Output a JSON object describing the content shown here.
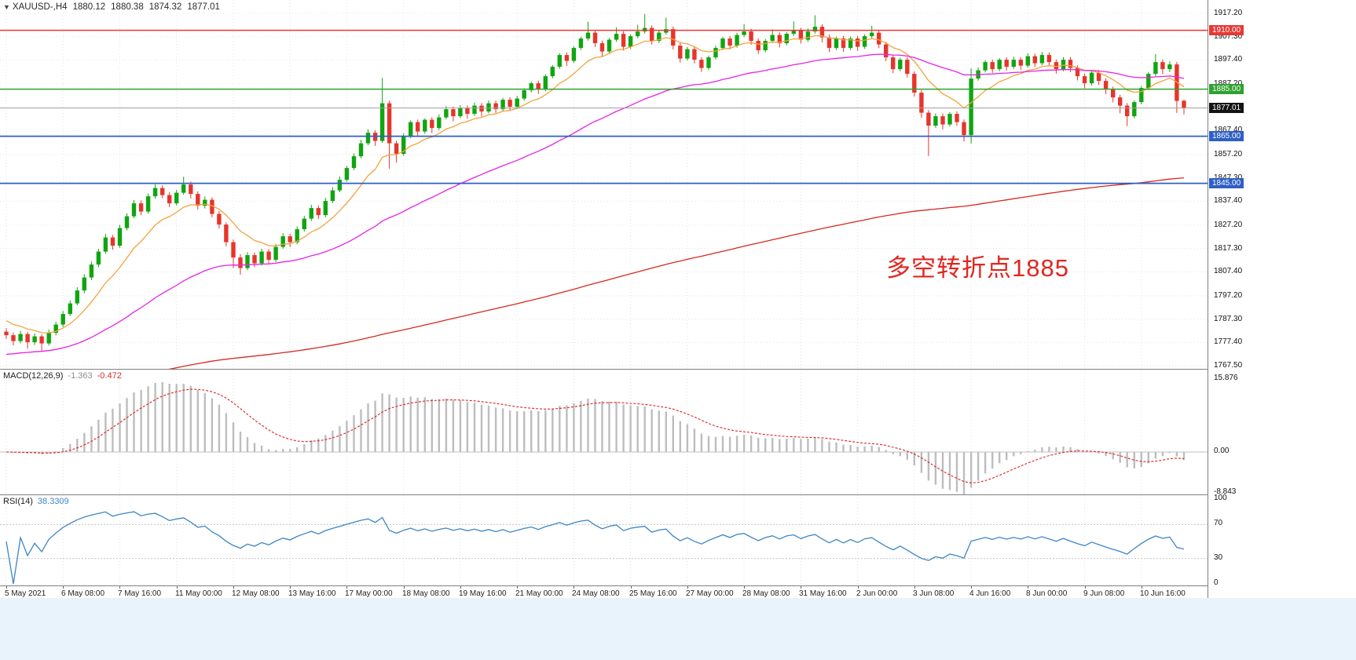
{
  "chart_header": {
    "marker": "▼",
    "symbol_period": "XAUUSD-,H4",
    "open": "1880.12",
    "high": "1880.38",
    "low": "1874.32",
    "close": "1877.01"
  },
  "annotation": {
    "text": "多空转折点1885",
    "color": "#e2251f"
  },
  "macd_panel": {
    "label": "MACD(12,26,9)",
    "main_value": "-1.363",
    "signal_value": "-0.472",
    "axis_values": [
      15.876,
      0.0,
      -8.843
    ],
    "axis_labels": [
      "15.876",
      "0.00",
      "-8.843"
    ]
  },
  "rsi_panel": {
    "label": "RSI(14)",
    "value": "38.3309",
    "axis_values": [
      100,
      70,
      30,
      0
    ],
    "axis_labels": [
      "100",
      "70",
      "30",
      "0"
    ],
    "level_lines": [
      70,
      30
    ]
  },
  "chart_data": {
    "type": "candlestick",
    "symbol": "XAUUSD-",
    "timeframe": "H4",
    "title": "XAUUSD-,H4",
    "ylim": [
      1767.5,
      1917.2
    ],
    "price_axis_ticks": [
      "1917.20",
      "1907.30",
      "1897.40",
      "1887.20",
      "1867.40",
      "1857.20",
      "1847.30",
      "1837.40",
      "1827.20",
      "1817.30",
      "1807.40",
      "1797.20",
      "1787.30",
      "1777.40",
      "1767.50"
    ],
    "x_labels": [
      "5 May 2021",
      "6 May 08:00",
      "7 May 16:00",
      "11 May 00:00",
      "12 May 08:00",
      "13 May 16:00",
      "17 May 00:00",
      "18 May 08:00",
      "19 May 16:00",
      "21 May 00:00",
      "24 May 08:00",
      "25 May 16:00",
      "27 May 00:00",
      "28 May 08:00",
      "31 May 16:00",
      "2 Jun 00:00",
      "3 Jun 08:00",
      "4 Jun 16:00",
      "8 Jun 00:00",
      "9 Jun 08:00",
      "10 Jun 16:00"
    ],
    "bars_per_label": 8,
    "horizontal_levels": [
      {
        "label": "1910.00",
        "price": 1910.0,
        "line_color": "#e53935",
        "badge_color": "#e53935",
        "width": 1.5
      },
      {
        "label": "1885.00",
        "price": 1885.0,
        "line_color": "#2fa12f",
        "badge_color": "#2fa12f",
        "width": 1.5
      },
      {
        "label": "1877.01",
        "price": 1877.01,
        "line_color": "#9e9e9e",
        "badge_color": "#141414",
        "width": 1
      },
      {
        "label": "1865.00",
        "price": 1865.0,
        "line_color": "#2f5fc4",
        "badge_color": "#2f5fc4",
        "width": 1.8
      },
      {
        "label": "1845.00",
        "price": 1845.0,
        "line_color": "#2f5fc4",
        "badge_color": "#2f5fc4",
        "width": 1.8
      }
    ],
    "moving_averages": [
      {
        "name": "fast-ma",
        "period": 10,
        "seed": 1788,
        "color": "#f2a33c"
      },
      {
        "name": "mid-ma",
        "period": 45,
        "seed": 1772,
        "color": "#e623e6"
      },
      {
        "name": "slow-ma",
        "period": 250,
        "seed": 1757,
        "color": "#d42a1e"
      }
    ],
    "indicators": [
      {
        "name": "MACD",
        "params": "12,26,9",
        "histogram_color": "#bdbdbd",
        "signal_color": "#dd2222"
      },
      {
        "name": "RSI",
        "params": "14",
        "color": "#3d85c6"
      }
    ],
    "colors": {
      "up": "#10a510",
      "down": "#e6352b",
      "background": "#ffffff",
      "grid": "#e4e4e4"
    },
    "candles": [
      [
        1782.0,
        1783.5,
        1778.9,
        1780.5
      ],
      [
        1780.5,
        1781.6,
        1776.2,
        1778.0
      ],
      [
        1778.0,
        1782.4,
        1777.0,
        1781.0
      ],
      [
        1781.0,
        1781.9,
        1774.8,
        1777.5
      ],
      [
        1777.5,
        1781.2,
        1776.3,
        1780.0
      ],
      [
        1780.0,
        1780.8,
        1773.9,
        1777.0
      ],
      [
        1777.0,
        1782.8,
        1776.1,
        1781.5
      ],
      [
        1781.5,
        1786.2,
        1780.4,
        1785.0
      ],
      [
        1785.0,
        1790.8,
        1784.0,
        1789.5
      ],
      [
        1789.5,
        1795.3,
        1788.6,
        1794.0
      ],
      [
        1794.0,
        1800.9,
        1793.2,
        1799.5
      ],
      [
        1799.5,
        1806.4,
        1798.3,
        1805.0
      ],
      [
        1805.0,
        1811.8,
        1803.9,
        1810.5
      ],
      [
        1810.5,
        1817.2,
        1809.4,
        1816.0
      ],
      [
        1816.0,
        1823.5,
        1815.1,
        1822.0
      ],
      [
        1822.0,
        1823.1,
        1816.8,
        1818.5
      ],
      [
        1818.5,
        1827.4,
        1817.6,
        1826.0
      ],
      [
        1826.0,
        1832.3,
        1825.0,
        1831.0
      ],
      [
        1831.0,
        1837.9,
        1830.2,
        1836.5
      ],
      [
        1836.5,
        1837.8,
        1831.4,
        1833.0
      ],
      [
        1833.0,
        1840.7,
        1832.1,
        1839.5
      ],
      [
        1839.5,
        1844.6,
        1838.4,
        1843.0
      ],
      [
        1843.0,
        1844.2,
        1838.7,
        1840.0
      ],
      [
        1840.0,
        1841.3,
        1834.9,
        1836.5
      ],
      [
        1836.5,
        1842.2,
        1835.6,
        1841.0
      ],
      [
        1841.0,
        1847.8,
        1840.1,
        1844.5
      ],
      [
        1844.5,
        1845.7,
        1838.6,
        1840.5
      ],
      [
        1840.5,
        1841.6,
        1833.9,
        1835.5
      ],
      [
        1835.5,
        1839.4,
        1834.3,
        1838.0
      ],
      [
        1838.0,
        1839.0,
        1830.6,
        1832.0
      ],
      [
        1832.0,
        1833.2,
        1825.8,
        1827.5
      ],
      [
        1827.5,
        1828.4,
        1818.3,
        1820.0
      ],
      [
        1820.0,
        1821.1,
        1808.9,
        1813.5
      ],
      [
        1813.5,
        1814.9,
        1806.2,
        1809.0
      ],
      [
        1809.0,
        1815.8,
        1808.1,
        1814.5
      ],
      [
        1814.5,
        1815.6,
        1809.4,
        1811.0
      ],
      [
        1811.0,
        1817.2,
        1810.0,
        1816.0
      ],
      [
        1816.0,
        1817.1,
        1810.8,
        1812.5
      ],
      [
        1812.5,
        1819.3,
        1811.6,
        1818.0
      ],
      [
        1818.0,
        1823.8,
        1817.2,
        1822.5
      ],
      [
        1822.5,
        1823.6,
        1817.9,
        1820.0
      ],
      [
        1820.0,
        1826.7,
        1819.1,
        1825.5
      ],
      [
        1825.5,
        1831.2,
        1824.6,
        1830.0
      ],
      [
        1830.0,
        1835.9,
        1829.0,
        1834.5
      ],
      [
        1834.5,
        1835.6,
        1829.8,
        1831.5
      ],
      [
        1831.5,
        1838.8,
        1830.6,
        1837.5
      ],
      [
        1837.5,
        1843.4,
        1836.6,
        1842.0
      ],
      [
        1842.0,
        1847.9,
        1841.2,
        1846.5
      ],
      [
        1846.5,
        1852.4,
        1845.7,
        1851.5
      ],
      [
        1851.5,
        1857.8,
        1850.6,
        1856.5
      ],
      [
        1856.5,
        1863.4,
        1855.6,
        1862.0
      ],
      [
        1862.0,
        1867.9,
        1861.1,
        1866.5
      ],
      [
        1866.5,
        1867.6,
        1860.9,
        1863.0
      ],
      [
        1863.0,
        1889.8,
        1862.2,
        1879.0
      ],
      [
        1879.0,
        1880.1,
        1851.2,
        1862.0
      ],
      [
        1862.0,
        1863.1,
        1853.8,
        1857.5
      ],
      [
        1857.5,
        1866.2,
        1856.7,
        1865.0
      ],
      [
        1865.0,
        1871.8,
        1864.2,
        1871.0
      ],
      [
        1871.0,
        1872.1,
        1864.9,
        1867.0
      ],
      [
        1867.0,
        1872.6,
        1866.1,
        1872.0
      ],
      [
        1872.0,
        1873.1,
        1866.3,
        1868.5
      ],
      [
        1868.5,
        1874.3,
        1867.6,
        1873.0
      ],
      [
        1873.0,
        1877.8,
        1872.2,
        1876.5
      ],
      [
        1876.5,
        1877.6,
        1871.4,
        1873.5
      ],
      [
        1873.5,
        1878.2,
        1872.7,
        1877.0
      ],
      [
        1877.0,
        1878.1,
        1872.5,
        1874.5
      ],
      [
        1874.5,
        1879.3,
        1873.6,
        1878.0
      ],
      [
        1878.0,
        1879.1,
        1873.4,
        1875.5
      ],
      [
        1875.5,
        1880.2,
        1874.7,
        1879.0
      ],
      [
        1879.0,
        1880.1,
        1874.9,
        1876.5
      ],
      [
        1876.5,
        1881.3,
        1875.6,
        1880.5
      ],
      [
        1880.5,
        1881.6,
        1875.9,
        1877.5
      ],
      [
        1877.5,
        1882.2,
        1876.6,
        1881.0
      ],
      [
        1881.0,
        1885.3,
        1880.1,
        1884.5
      ],
      [
        1884.5,
        1888.2,
        1883.6,
        1887.5
      ],
      [
        1887.5,
        1888.6,
        1883.0,
        1885.0
      ],
      [
        1885.0,
        1891.3,
        1884.1,
        1890.5
      ],
      [
        1890.5,
        1895.2,
        1889.6,
        1894.5
      ],
      [
        1894.5,
        1900.3,
        1893.6,
        1899.5
      ],
      [
        1899.5,
        1900.6,
        1894.9,
        1897.0
      ],
      [
        1897.0,
        1903.2,
        1896.1,
        1902.5
      ],
      [
        1902.5,
        1907.3,
        1901.6,
        1906.5
      ],
      [
        1906.5,
        1913.6,
        1905.6,
        1909.0
      ],
      [
        1909.0,
        1910.1,
        1902.9,
        1904.5
      ],
      [
        1904.5,
        1905.6,
        1898.9,
        1901.0
      ],
      [
        1901.0,
        1906.8,
        1900.1,
        1906.0
      ],
      [
        1906.0,
        1911.3,
        1905.1,
        1908.5
      ],
      [
        1908.5,
        1909.6,
        1901.4,
        1903.0
      ],
      [
        1903.0,
        1908.2,
        1902.1,
        1907.5
      ],
      [
        1907.5,
        1912.3,
        1906.6,
        1909.5
      ],
      [
        1909.5,
        1916.9,
        1908.6,
        1911.0
      ],
      [
        1911.0,
        1912.1,
        1903.9,
        1905.5
      ],
      [
        1905.5,
        1910.2,
        1904.6,
        1909.0
      ],
      [
        1909.0,
        1915.4,
        1908.1,
        1910.5
      ],
      [
        1910.5,
        1911.6,
        1901.9,
        1903.5
      ],
      [
        1903.5,
        1904.6,
        1896.3,
        1898.0
      ],
      [
        1898.0,
        1903.0,
        1897.1,
        1902.0
      ],
      [
        1902.0,
        1903.1,
        1895.9,
        1897.5
      ],
      [
        1897.5,
        1898.6,
        1892.3,
        1894.0
      ],
      [
        1894.0,
        1899.3,
        1893.1,
        1898.5
      ],
      [
        1898.5,
        1903.4,
        1897.6,
        1902.5
      ],
      [
        1902.5,
        1907.2,
        1901.6,
        1906.5
      ],
      [
        1906.5,
        1907.6,
        1901.9,
        1903.5
      ],
      [
        1903.5,
        1909.0,
        1902.6,
        1908.0
      ],
      [
        1908.0,
        1912.7,
        1907.1,
        1909.5
      ],
      [
        1909.5,
        1910.6,
        1903.8,
        1905.5
      ],
      [
        1905.5,
        1906.6,
        1899.9,
        1901.5
      ],
      [
        1901.5,
        1906.3,
        1900.6,
        1905.5
      ],
      [
        1905.5,
        1910.4,
        1904.6,
        1908.0
      ],
      [
        1908.0,
        1909.1,
        1902.7,
        1904.5
      ],
      [
        1904.5,
        1909.2,
        1903.6,
        1908.5
      ],
      [
        1908.5,
        1913.8,
        1907.6,
        1910.0
      ],
      [
        1910.0,
        1911.1,
        1904.4,
        1906.0
      ],
      [
        1906.0,
        1910.8,
        1905.1,
        1909.5
      ],
      [
        1909.5,
        1916.4,
        1908.6,
        1911.5
      ],
      [
        1911.5,
        1912.6,
        1904.9,
        1907.0
      ],
      [
        1907.0,
        1908.1,
        1900.8,
        1902.5
      ],
      [
        1902.5,
        1907.3,
        1901.6,
        1906.5
      ],
      [
        1906.5,
        1907.6,
        1900.9,
        1902.5
      ],
      [
        1902.5,
        1907.4,
        1901.6,
        1906.5
      ],
      [
        1906.5,
        1907.6,
        1901.3,
        1903.0
      ],
      [
        1903.0,
        1908.3,
        1902.1,
        1907.5
      ],
      [
        1907.5,
        1911.9,
        1906.6,
        1909.0
      ],
      [
        1909.0,
        1910.1,
        1902.4,
        1904.0
      ],
      [
        1904.0,
        1905.1,
        1896.9,
        1898.5
      ],
      [
        1898.5,
        1899.6,
        1891.8,
        1893.5
      ],
      [
        1893.5,
        1898.4,
        1892.6,
        1897.5
      ],
      [
        1897.5,
        1898.6,
        1889.9,
        1891.5
      ],
      [
        1891.5,
        1892.6,
        1881.9,
        1883.5
      ],
      [
        1883.5,
        1884.6,
        1872.8,
        1875.0
      ],
      [
        1875.0,
        1876.1,
        1856.6,
        1869.5
      ],
      [
        1869.5,
        1874.7,
        1868.6,
        1873.5
      ],
      [
        1873.5,
        1874.6,
        1867.9,
        1870.0
      ],
      [
        1870.0,
        1875.2,
        1869.1,
        1874.5
      ],
      [
        1874.5,
        1875.6,
        1869.4,
        1871.0
      ],
      [
        1871.0,
        1872.1,
        1862.8,
        1865.5
      ],
      [
        1865.5,
        1893.9,
        1861.9,
        1889.5
      ],
      [
        1889.5,
        1894.2,
        1888.6,
        1893.0
      ],
      [
        1893.0,
        1897.3,
        1892.1,
        1896.5
      ],
      [
        1896.5,
        1897.6,
        1891.9,
        1893.5
      ],
      [
        1893.5,
        1898.2,
        1892.6,
        1897.5
      ],
      [
        1897.5,
        1898.6,
        1892.9,
        1894.5
      ],
      [
        1894.5,
        1898.8,
        1893.6,
        1897.5
      ],
      [
        1897.5,
        1898.6,
        1893.2,
        1895.0
      ],
      [
        1895.0,
        1900.2,
        1894.1,
        1899.0
      ],
      [
        1899.0,
        1900.1,
        1894.4,
        1896.0
      ],
      [
        1896.0,
        1900.8,
        1895.1,
        1899.5
      ],
      [
        1899.5,
        1900.6,
        1894.7,
        1896.5
      ],
      [
        1896.5,
        1897.6,
        1891.6,
        1893.5
      ],
      [
        1893.5,
        1898.6,
        1892.6,
        1897.5
      ],
      [
        1897.5,
        1898.6,
        1892.2,
        1894.0
      ],
      [
        1894.0,
        1895.1,
        1888.7,
        1890.5
      ],
      [
        1890.5,
        1891.6,
        1885.4,
        1887.5
      ],
      [
        1887.5,
        1892.9,
        1886.6,
        1892.0
      ],
      [
        1892.0,
        1893.1,
        1886.8,
        1888.5
      ],
      [
        1888.5,
        1889.6,
        1882.9,
        1885.0
      ],
      [
        1885.0,
        1886.1,
        1879.4,
        1881.5
      ],
      [
        1881.5,
        1882.6,
        1874.7,
        1878.0
      ],
      [
        1878.0,
        1879.1,
        1869.3,
        1873.5
      ],
      [
        1873.5,
        1880.2,
        1872.6,
        1879.5
      ],
      [
        1879.5,
        1886.3,
        1878.6,
        1885.5
      ],
      [
        1885.5,
        1892.2,
        1884.6,
        1891.5
      ],
      [
        1891.5,
        1899.9,
        1890.6,
        1896.5
      ],
      [
        1896.5,
        1897.6,
        1891.4,
        1893.5
      ],
      [
        1893.5,
        1896.8,
        1892.3,
        1895.5
      ],
      [
        1895.5,
        1896.6,
        1874.9,
        1880.0
      ],
      [
        1880.1,
        1880.4,
        1874.3,
        1877.0
      ]
    ]
  }
}
